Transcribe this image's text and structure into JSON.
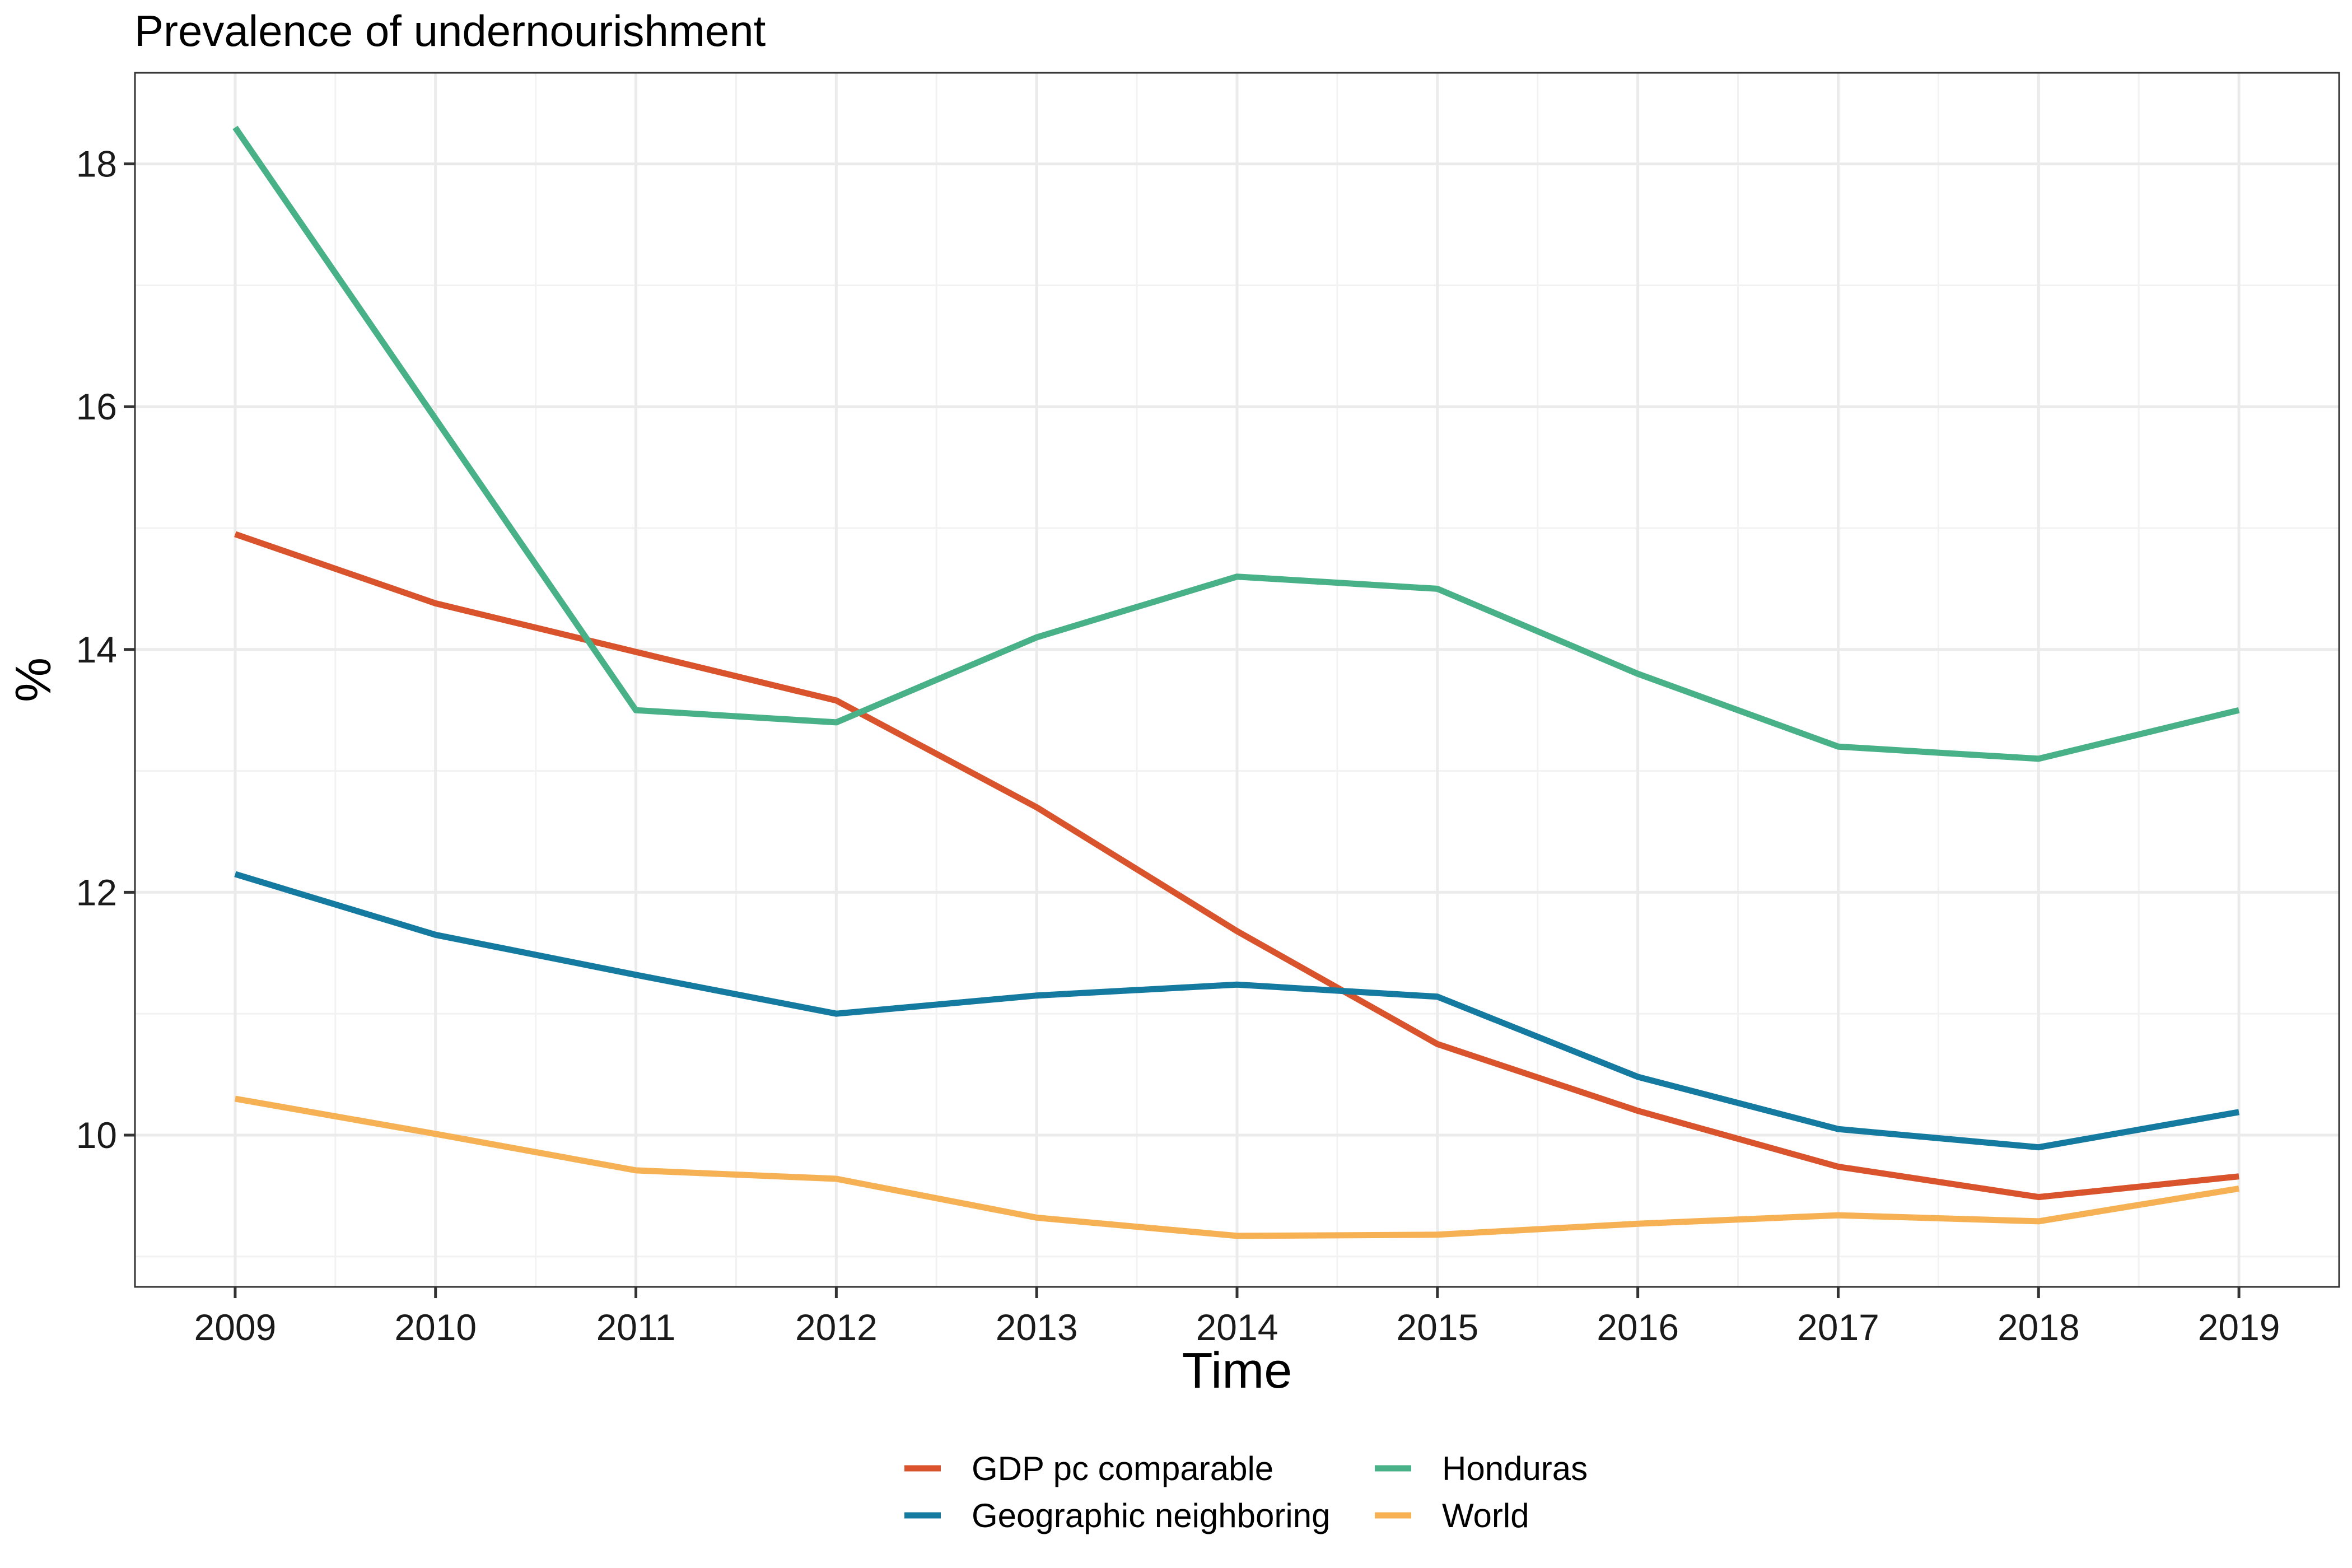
{
  "chart_data": {
    "type": "line",
    "title": "Prevalence of undernourishment",
    "xlabel": "Time",
    "ylabel": "%",
    "x": [
      2009,
      2010,
      2011,
      2012,
      2013,
      2014,
      2015,
      2016,
      2017,
      2018,
      2019
    ],
    "xlim": [
      2008.5,
      2019.5
    ],
    "ylim": [
      8.75,
      18.75
    ],
    "yticks": [
      10,
      12,
      14,
      16,
      18
    ],
    "grid": true,
    "legend_position": "bottom",
    "series": [
      {
        "name": "GDP pc comparable",
        "color": "#d9532d",
        "values": [
          14.95,
          14.38,
          13.98,
          13.58,
          12.7,
          11.68,
          10.75,
          10.2,
          9.74,
          9.49,
          9.66
        ]
      },
      {
        "name": "Geographic neighboring",
        "color": "#157aa0",
        "values": [
          12.15,
          11.65,
          11.32,
          11.0,
          11.15,
          11.24,
          11.14,
          10.48,
          10.05,
          9.9,
          10.19
        ]
      },
      {
        "name": "Honduras",
        "color": "#48b187",
        "values": [
          18.3,
          15.9,
          13.5,
          13.4,
          14.1,
          14.6,
          14.5,
          13.8,
          13.2,
          13.1,
          13.5
        ]
      },
      {
        "name": "World",
        "color": "#f6b154",
        "values": [
          10.3,
          10.01,
          9.71,
          9.64,
          9.32,
          9.17,
          9.18,
          9.27,
          9.34,
          9.29,
          9.56
        ]
      }
    ]
  }
}
